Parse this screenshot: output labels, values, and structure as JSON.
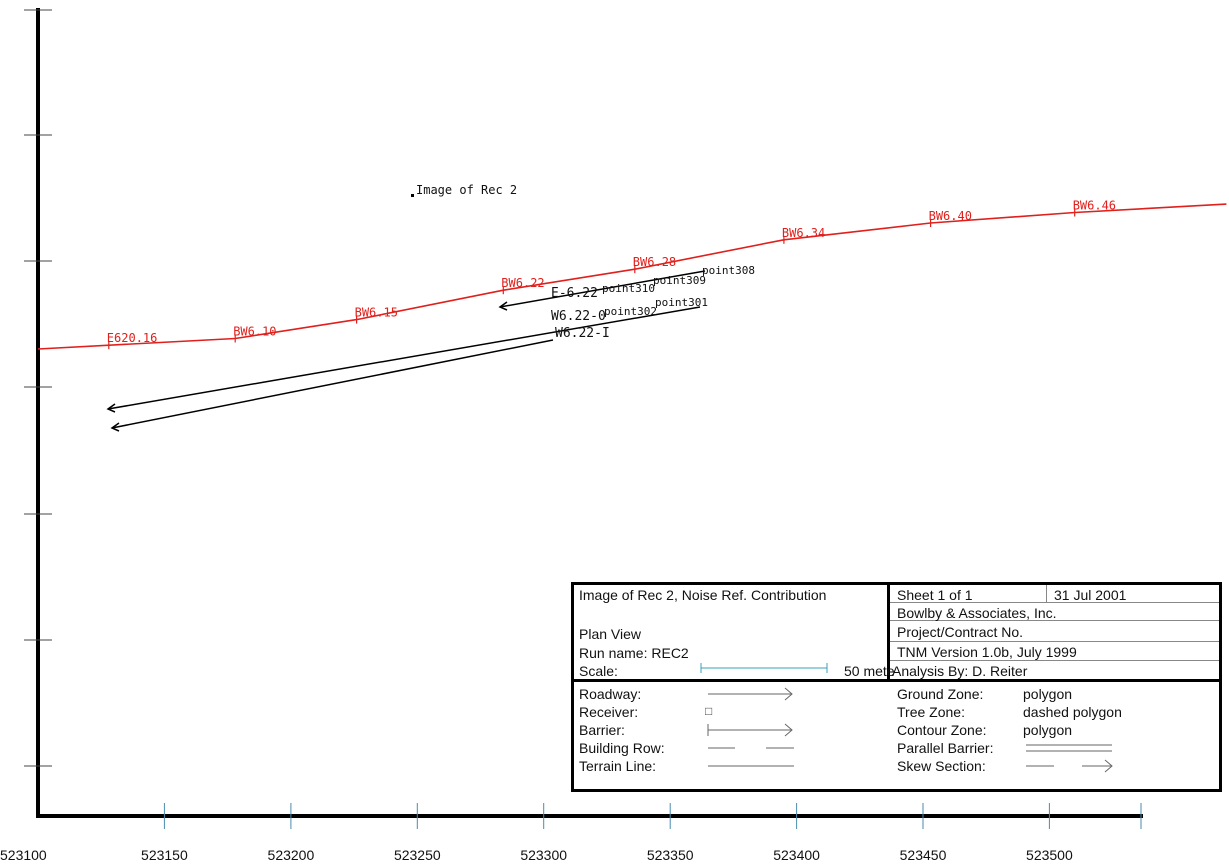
{
  "colors": {
    "barrier": "#e0201c",
    "ink": "#000000",
    "tick": "#4a8ab0",
    "scale_bar": "#3aa0b8"
  },
  "chart_data": {
    "type": "diagram",
    "x_ticks": [
      "523100",
      "523150",
      "523200",
      "523250",
      "523300",
      "523350",
      "523400",
      "523450",
      "523500"
    ],
    "x_tick_values": [
      523100,
      523150,
      523200,
      523250,
      523300,
      523350,
      523400,
      523450,
      523500
    ],
    "barrier": {
      "points": [
        [
          523100,
          0
        ],
        [
          523178,
          5
        ],
        [
          523226,
          14
        ],
        [
          523284,
          28
        ],
        [
          523336,
          38
        ],
        [
          523395,
          52
        ],
        [
          523453,
          60
        ],
        [
          523510,
          65
        ],
        [
          523570,
          69
        ]
      ],
      "labels": [
        {
          "text": "E620.16",
          "x": 523128
        },
        {
          "text": "BW6.10",
          "x": 523178
        },
        {
          "text": "BW6.15",
          "x": 523226
        },
        {
          "text": "BW6.22",
          "x": 523284
        },
        {
          "text": "BW6.28",
          "x": 523336
        },
        {
          "text": "BW6.34",
          "x": 523395
        },
        {
          "text": "BW6.40",
          "x": 523453
        },
        {
          "text": "BW6.46",
          "x": 523510
        }
      ]
    },
    "receiver": {
      "label": "Image of Rec 2"
    },
    "roadway_labels": [
      "E-6.22",
      "W6.22-0",
      "W6.22-I"
    ],
    "point_labels": [
      "point310",
      "point309",
      "point308",
      "point302",
      "point301"
    ]
  },
  "legend": {
    "title": "Image of Rec 2, Noise Ref. Contribution",
    "sheet": "Sheet 1 of 1",
    "date": "31 Jul 2001",
    "company": "Bowlby & Associates, Inc.",
    "project": "Project/Contract No.",
    "plan_view": "Plan View",
    "run_name": "Run name: REC2",
    "version": "TNM Version 1.0b, July 1999",
    "scale_label": "Scale:",
    "scale_text": "50 mete",
    "analysis": "Analysis By: D. Reiter",
    "items_left": [
      "Roadway:",
      "Receiver:",
      "Barrier:",
      "Building Row:",
      "Terrain Line:"
    ],
    "items_right": [
      "Ground Zone:",
      "Tree Zone:",
      "Contour Zone:",
      "Parallel Barrier:",
      "Skew Section:"
    ],
    "values_right": [
      "polygon",
      "dashed polygon",
      "polygon"
    ],
    "receiver_symbol": "□"
  }
}
